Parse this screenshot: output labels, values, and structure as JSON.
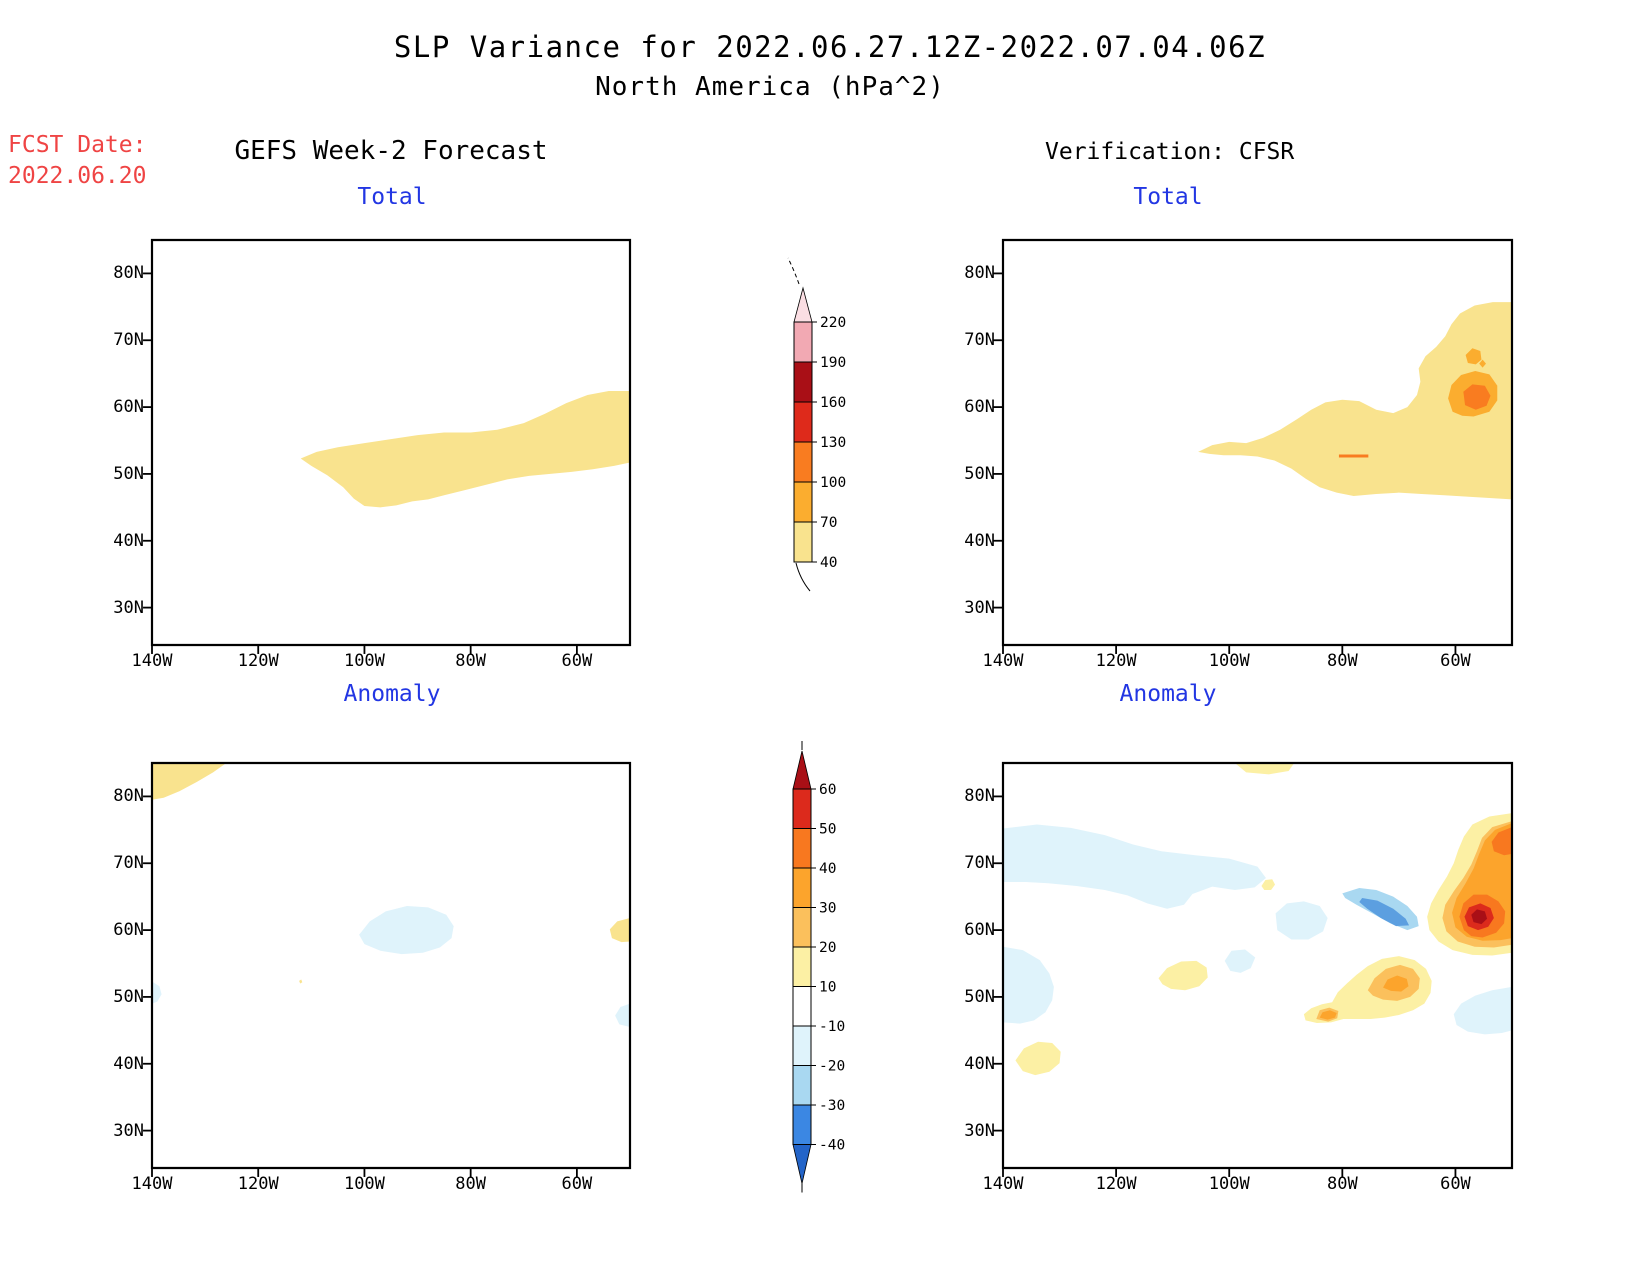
{
  "title": {
    "line1": "SLP Variance for 2022.06.27.12Z-2022.07.04.06Z",
    "line2": "North America (hPa^2)"
  },
  "fcst_date": {
    "label": "FCST Date:",
    "value": "2022.06.20"
  },
  "columns": {
    "left": "GEFS Week-2 Forecast",
    "right": "Verification: CFSR"
  },
  "panels": [
    {
      "id": "tl",
      "title": "Total",
      "column": "GEFS Week-2 Forecast"
    },
    {
      "id": "tr",
      "title": "Total",
      "column": "Verification: CFSR"
    },
    {
      "id": "bl",
      "title": "Anomaly",
      "column": "GEFS Week-2 Forecast"
    },
    {
      "id": "br",
      "title": "Anomaly",
      "column": "Verification: CFSR"
    }
  ],
  "axes": {
    "lat_labels": [
      "80N",
      "70N",
      "60N",
      "50N",
      "40N",
      "30N"
    ],
    "lon_labels": [
      "140W",
      "120W",
      "100W",
      "80W",
      "60W"
    ]
  },
  "colorbar_total": {
    "tick_labels": [
      "220",
      "190",
      "160",
      "130",
      "100",
      "70",
      "40"
    ],
    "colors_top_to_bottom": [
      "#F2A9B3",
      "#A90F16",
      "#DE2A1B",
      "#F97C20",
      "#FBAD2F",
      "#F9E38E"
    ],
    "above_top_color": "#FBDEE3"
  },
  "colorbar_anomaly": {
    "tick_labels": [
      "60",
      "50",
      "40",
      "30",
      "20",
      "10",
      "-10",
      "-20",
      "-30",
      "-40"
    ],
    "colors_top_to_bottom": [
      "#DC2A1C",
      "#F8781F",
      "#FCA42C",
      "#FBC05C",
      "#FCF0A4",
      "#FFFFFF",
      "#DFF3FB",
      "#A9D8F1",
      "#3B87E3"
    ],
    "above_top_color": "#A90F16",
    "below_bottom_color": "#2364C8"
  },
  "colors": {
    "panel_title_blue": "#2236E3",
    "fcst_red": "#EF4444",
    "coastline": "#000000"
  },
  "chart_data": {
    "type": "heatmap",
    "subtype": "filled-contour-maps",
    "units": "hPa^2",
    "projection": {
      "lon_range": [
        -140,
        -50
      ],
      "lat_range": [
        24.4,
        85
      ]
    },
    "total_levels": [
      40,
      70,
      100,
      130,
      160,
      190,
      220
    ],
    "anomaly_levels": [
      -40,
      -30,
      -20,
      -10,
      10,
      20,
      30,
      40,
      50,
      60
    ],
    "panels": [
      {
        "title": "Total",
        "column": "GEFS Week-2 Forecast",
        "shaded_regions": [
          {
            "value_range": "40-70",
            "description": "zonal band across central/eastern Canada from ~112W,52N widening eastward, spanning ~45N-62N at the Atlantic (right) edge"
          }
        ]
      },
      {
        "title": "Total",
        "column": "Verification: CFSR",
        "shaded_regions": [
          {
            "value_range": "40-70",
            "description": "broad band ~105W-50W between ~46N and 61N, extending northeast along Labrador Sea to ~76N at right edge"
          },
          {
            "value_range": "70-100",
            "description": "blob over Labrador Sea ~56W,62N and small spot ~56.5W,67.5N"
          },
          {
            "value_range": "100-130",
            "description": "core ~56W,61.5N; thin contour dash near 78W,52.6N"
          }
        ]
      },
      {
        "title": "Anomaly",
        "column": "GEFS Week-2 Forecast",
        "shaded_regions": [
          {
            "value_range": "10-20",
            "description": "patch at top-left corner (NW of ~126W,80N); small patch at right edge ~52W,60N; speck ~112W,52N"
          },
          {
            "value_range": "-20--10",
            "description": "patch over NW Hudson Bay ~92W,60N; small patches at left edge ~50N and right edge ~47N"
          }
        ]
      },
      {
        "title": "Anomaly",
        "column": "Verification: CFSR",
        "shaded_regions": [
          {
            "value_range": ">60",
            "description": "maximum over Labrador Sea ~55.5W,62N (dark red core)"
          },
          {
            "value_range": "50-60",
            "description": "red ring around the maximum"
          },
          {
            "value_range": "40-50",
            "description": "strong-orange ring; second lobe at right edge ~72-75N"
          },
          {
            "value_range": "30-40",
            "description": "orange band along Labrador Sea coast 58N-76N; core over central Quebec ~70W,52N; spot north of Lake Huron ~82.5W,47N"
          },
          {
            "value_range": "20-30",
            "description": "amber fringe of Labrador Sea feature; Quebec blob ~75W-66W,49-55N"
          },
          {
            "value_range": "10-20",
            "description": "pale-yellow fringes; patch west of Hudson Bay ~108W,53N; patch off California ~134W,41N; sliver at top edge ~93W,84N; spot ~93W,67N"
          },
          {
            "value_range": "-20--10",
            "description": "large pale-cyan area over NW Canada 140W-94W,64-75N; west coast 140W-131W,46-57N; Foxe Basin ~87W,61N; patch ~98W,55N; Newfoundland ~55W,47N"
          },
          {
            "value_range": "-30--20",
            "description": "light-blue band over south Baffin Island / Hudson Strait ~80W-67W,60-66N with deeper core"
          }
        ]
      }
    ]
  }
}
